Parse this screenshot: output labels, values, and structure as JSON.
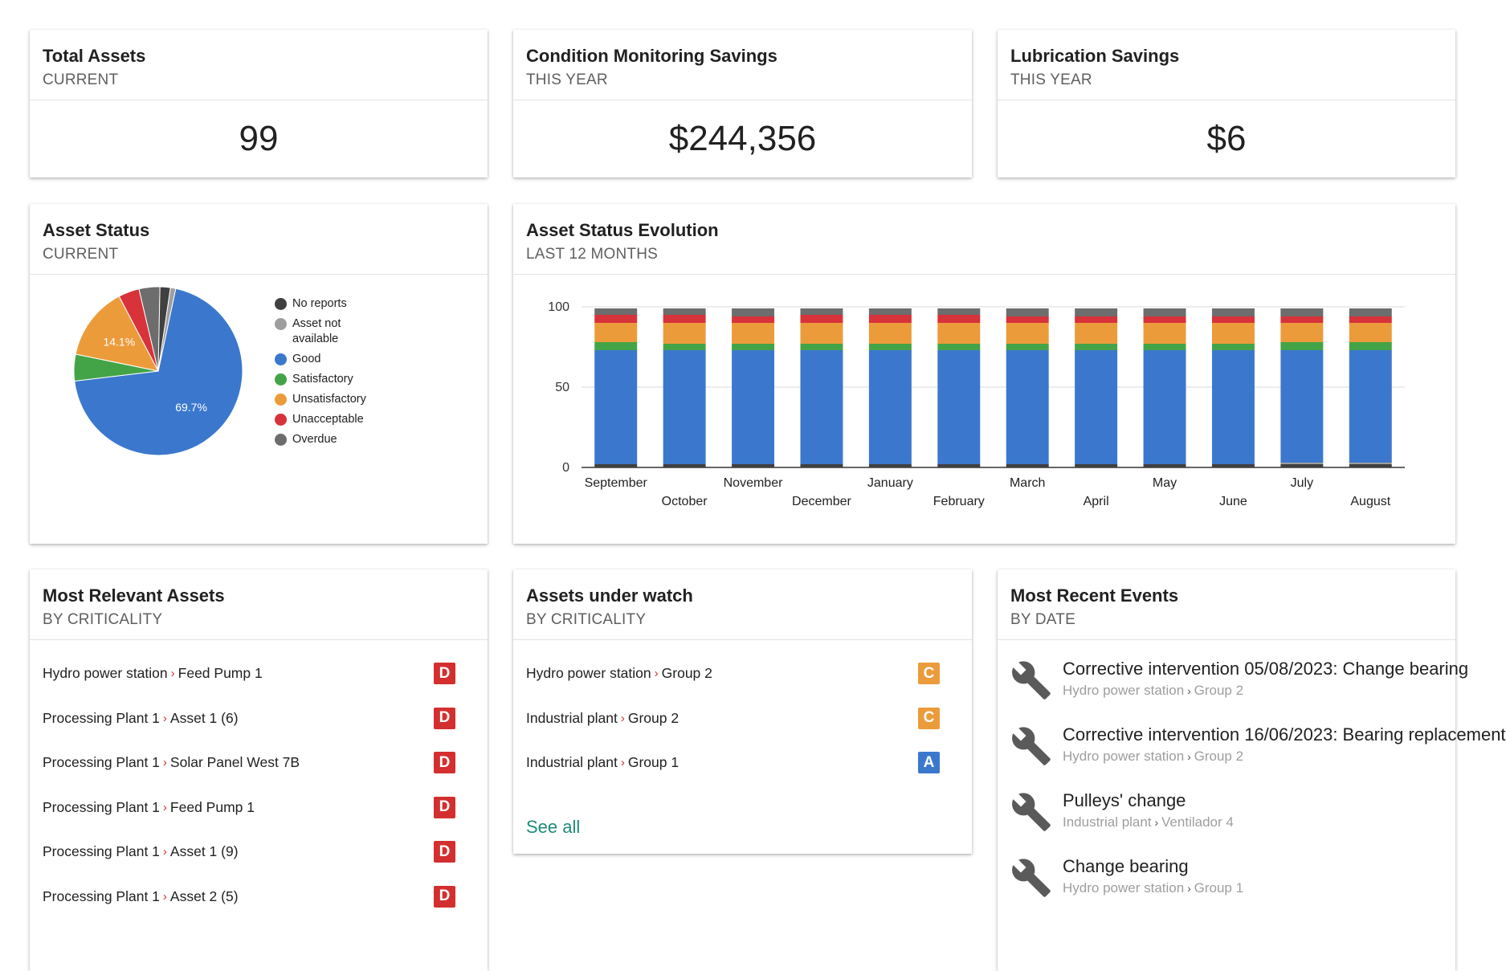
{
  "cards": {
    "total_assets": {
      "title": "Total Assets",
      "subtitle": "CURRENT",
      "value": "99"
    },
    "cm_savings": {
      "title": "Condition Monitoring Savings",
      "subtitle": "THIS YEAR",
      "value": "$244,356"
    },
    "lub_savings": {
      "title": "Lubrication Savings",
      "subtitle": "THIS YEAR",
      "value": "$6"
    },
    "asset_status": {
      "title": "Asset Status",
      "subtitle": "CURRENT"
    },
    "status_evolution": {
      "title": "Asset Status Evolution",
      "subtitle": "LAST 12 MONTHS"
    },
    "relevant_assets": {
      "title": "Most Relevant Assets",
      "subtitle": "BY CRITICALITY"
    },
    "under_watch": {
      "title": "Assets under watch",
      "subtitle": "BY CRITICALITY",
      "see_all": "See all"
    },
    "recent_events": {
      "title": "Most Recent Events",
      "subtitle": "BY DATE"
    }
  },
  "colors": {
    "no_reports": "#404040",
    "not_available": "#9e9e9e",
    "good": "#3b78cd",
    "satisfactory": "#43a447",
    "unsatisfactory": "#ec9b3b",
    "unacceptable": "#d8323a",
    "overdue": "#6d6d6d",
    "badge_d": "#d32f2f",
    "badge_c": "#ec9b3b",
    "badge_a": "#3b78cd"
  },
  "chart_data": [
    {
      "type": "pie",
      "categories": [
        "No reports",
        "Asset not available",
        "Good",
        "Satisfactory",
        "Unsatisfactory",
        "Unacceptable",
        "Overdue"
      ],
      "values": [
        2.0,
        1.0,
        69.7,
        5.1,
        14.1,
        4.0,
        4.0
      ],
      "slice_labels": {
        "Good": "69.7%",
        "Unsatisfactory": "14.1%"
      },
      "legend": [
        "No reports",
        "Asset not available",
        "Good",
        "Satisfactory",
        "Unsatisfactory",
        "Unacceptable",
        "Overdue"
      ],
      "legend_position": "right"
    },
    {
      "type": "bar",
      "stacked": true,
      "categories": [
        "September",
        "October",
        "November",
        "December",
        "January",
        "February",
        "March",
        "April",
        "May",
        "June",
        "July",
        "August"
      ],
      "ylim": [
        0,
        100
      ],
      "yticks": [
        "0",
        "50",
        "100"
      ],
      "grid": true,
      "series": [
        {
          "key": "no_reports",
          "values": [
            2,
            2,
            2,
            2,
            2,
            2,
            2,
            2,
            2,
            2,
            2,
            2
          ]
        },
        {
          "key": "not_available",
          "values": [
            0,
            0,
            0,
            0,
            0,
            0,
            0,
            0,
            0,
            0,
            1,
            1
          ]
        },
        {
          "key": "good",
          "values": [
            71,
            71,
            71,
            71,
            71,
            71,
            71,
            71,
            71,
            71,
            70,
            70
          ]
        },
        {
          "key": "satisfactory",
          "values": [
            5,
            4,
            4,
            4,
            4,
            4,
            4,
            4,
            4,
            4,
            5,
            5
          ]
        },
        {
          "key": "unsatisfactory",
          "values": [
            12,
            13,
            13,
            13,
            13,
            13,
            13,
            13,
            13,
            13,
            12,
            12
          ]
        },
        {
          "key": "unacceptable",
          "values": [
            5,
            5,
            4,
            5,
            5,
            5,
            4,
            4,
            4,
            4,
            4,
            4
          ]
        },
        {
          "key": "overdue",
          "values": [
            4,
            4,
            5,
            4,
            4,
            4,
            5,
            5,
            5,
            5,
            5,
            5
          ]
        }
      ]
    }
  ],
  "relevant_assets": [
    {
      "parent": "Hydro power station",
      "name": "Feed Pump 1",
      "grade": "D"
    },
    {
      "parent": "Processing Plant 1",
      "name": "Asset 1 (6)",
      "grade": "D"
    },
    {
      "parent": "Processing Plant 1",
      "name": "Solar Panel West 7B",
      "grade": "D"
    },
    {
      "parent": "Processing Plant 1",
      "name": "Feed Pump 1",
      "grade": "D"
    },
    {
      "parent": "Processing Plant 1",
      "name": "Asset 1 (9)",
      "grade": "D"
    },
    {
      "parent": "Processing Plant 1",
      "name": "Asset 2 (5)",
      "grade": "D"
    }
  ],
  "watch_assets": [
    {
      "parent": "Hydro power station",
      "name": "Group 2",
      "grade": "C"
    },
    {
      "parent": "Industrial plant",
      "name": "Group 2",
      "grade": "C"
    },
    {
      "parent": "Industrial plant",
      "name": "Group 1",
      "grade": "A"
    }
  ],
  "events": [
    {
      "title": "Corrective intervention 05/08/2023: Change bearing",
      "parent": "Hydro power station",
      "name": "Group 2",
      "icon": "wrench-icon"
    },
    {
      "title": "Corrective intervention 16/06/2023: Bearing replacement",
      "parent": "Hydro power station",
      "name": "Group 2",
      "icon": "wrench-icon"
    },
    {
      "title": "Pulleys' change",
      "parent": "Industrial plant",
      "name": "Ventilador 4",
      "icon": "wrench-icon"
    },
    {
      "title": "Change bearing",
      "parent": "Hydro power station",
      "name": "Group 1",
      "icon": "wrench-icon"
    }
  ]
}
